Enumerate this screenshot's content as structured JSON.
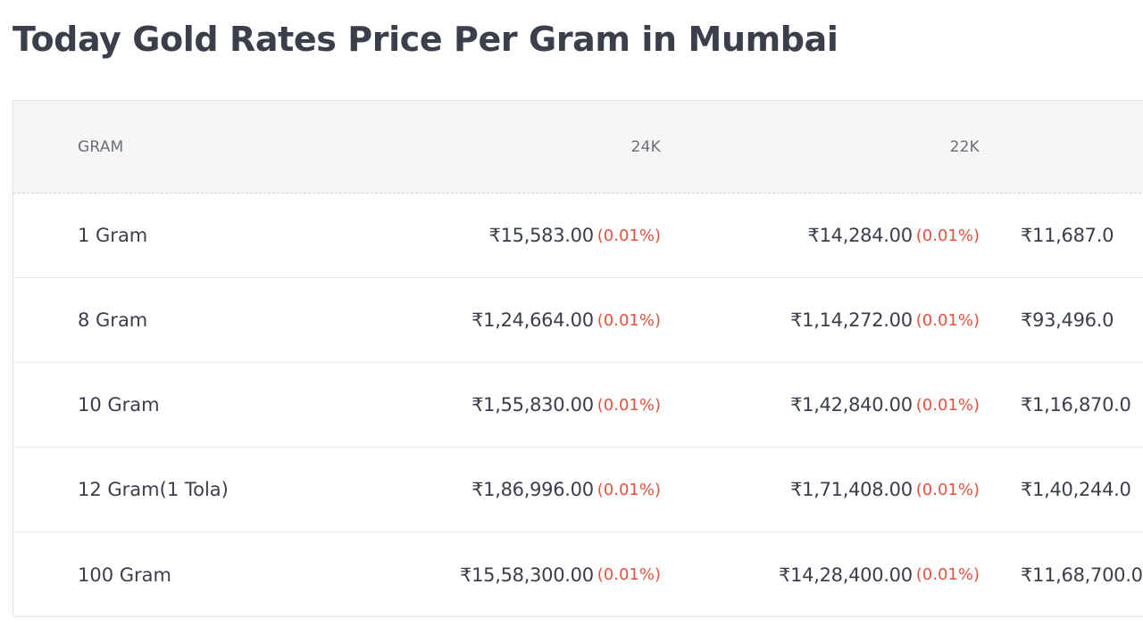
{
  "page": {
    "title": "Today Gold Rates Price Per Gram in Mumbai"
  },
  "table": {
    "headers": {
      "gram": "GRAM",
      "k24": "24K",
      "k22": "22K"
    },
    "rows": [
      {
        "gram": "1 Gram",
        "k24": {
          "price": "₹15,583.00",
          "change": "(0.01%)"
        },
        "k22": {
          "price": "₹14,284.00",
          "change": "(0.01%)"
        },
        "k18": {
          "price": "₹11,687.0"
        }
      },
      {
        "gram": "8 Gram",
        "k24": {
          "price": "₹1,24,664.00",
          "change": "(0.01%)"
        },
        "k22": {
          "price": "₹1,14,272.00",
          "change": "(0.01%)"
        },
        "k18": {
          "price": "₹93,496.0"
        }
      },
      {
        "gram": "10 Gram",
        "k24": {
          "price": "₹1,55,830.00",
          "change": "(0.01%)"
        },
        "k22": {
          "price": "₹1,42,840.00",
          "change": "(0.01%)"
        },
        "k18": {
          "price": "₹1,16,870.0"
        }
      },
      {
        "gram": "12 Gram(1 Tola)",
        "k24": {
          "price": "₹1,86,996.00",
          "change": "(0.01%)"
        },
        "k22": {
          "price": "₹1,71,408.00",
          "change": "(0.01%)"
        },
        "k18": {
          "price": "₹1,40,244.0"
        }
      },
      {
        "gram": "100 Gram",
        "k24": {
          "price": "₹15,58,300.00",
          "change": "(0.01%)"
        },
        "k22": {
          "price": "₹14,28,400.00",
          "change": "(0.01%)"
        },
        "k18": {
          "price": "₹11,68,700.0"
        }
      }
    ]
  },
  "colors": {
    "text": "#3a3f4b",
    "header_text": "#6b6f78",
    "change": "#e0533f",
    "header_bg": "#f6f6f6"
  }
}
